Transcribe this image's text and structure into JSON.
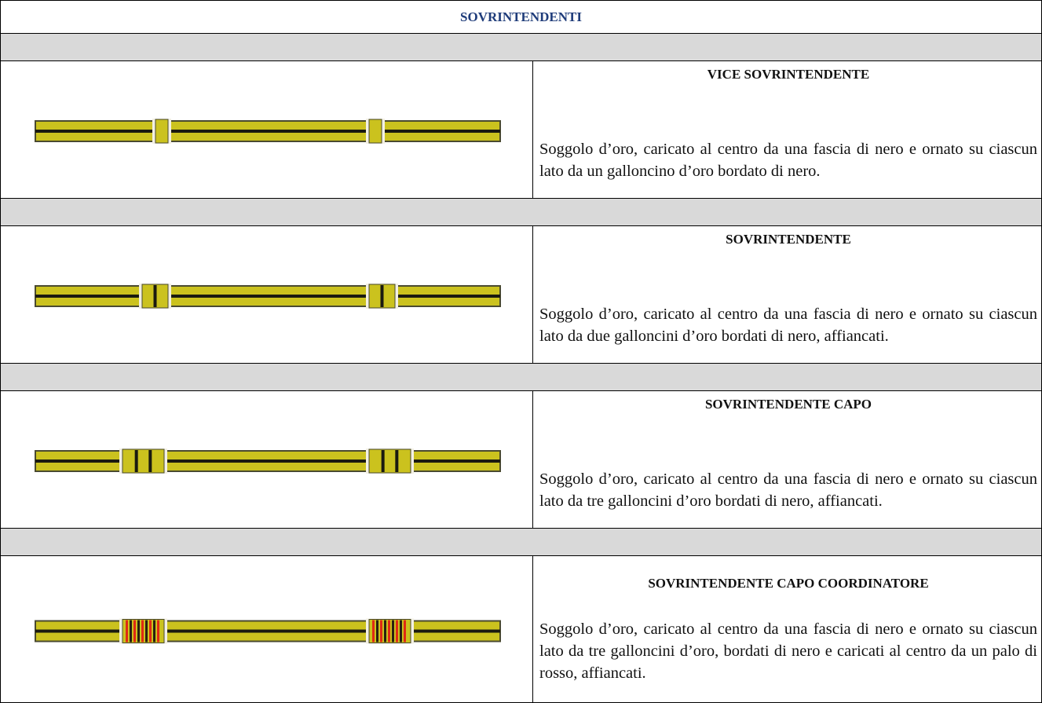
{
  "header": {
    "title": "SOVRINTENDENTI"
  },
  "rows": [
    {
      "title": "VICE SOVRINTENDENTE",
      "description": "Soggolo d’oro, caricato al centro da una fascia di nero e ornato su ciascun lato da un galloncino d’oro bordato di nero."
    },
    {
      "title": "SOVRINTENDENTE",
      "description": "Soggolo d’oro, caricato al centro da una fascia di nero e ornato su ciascun lato da due galloncini d’oro bordati di nero, affiancati."
    },
    {
      "title": "SOVRINTENDENTE CAPO",
      "description": "Soggolo d’oro, caricato al centro da una fascia di nero e ornato su ciascun lato da tre galloncini d’oro bordati di nero, affiancati."
    },
    {
      "title": "SOVRINTENDENTE CAPO COORDINATORE",
      "description": "Soggolo d’oro, caricato al centro da una fascia di nero e ornato su ciascun lato da tre galloncini d’oro, bordati di nero e caricati al centro da un palo di rosso, affiancati."
    }
  ]
}
